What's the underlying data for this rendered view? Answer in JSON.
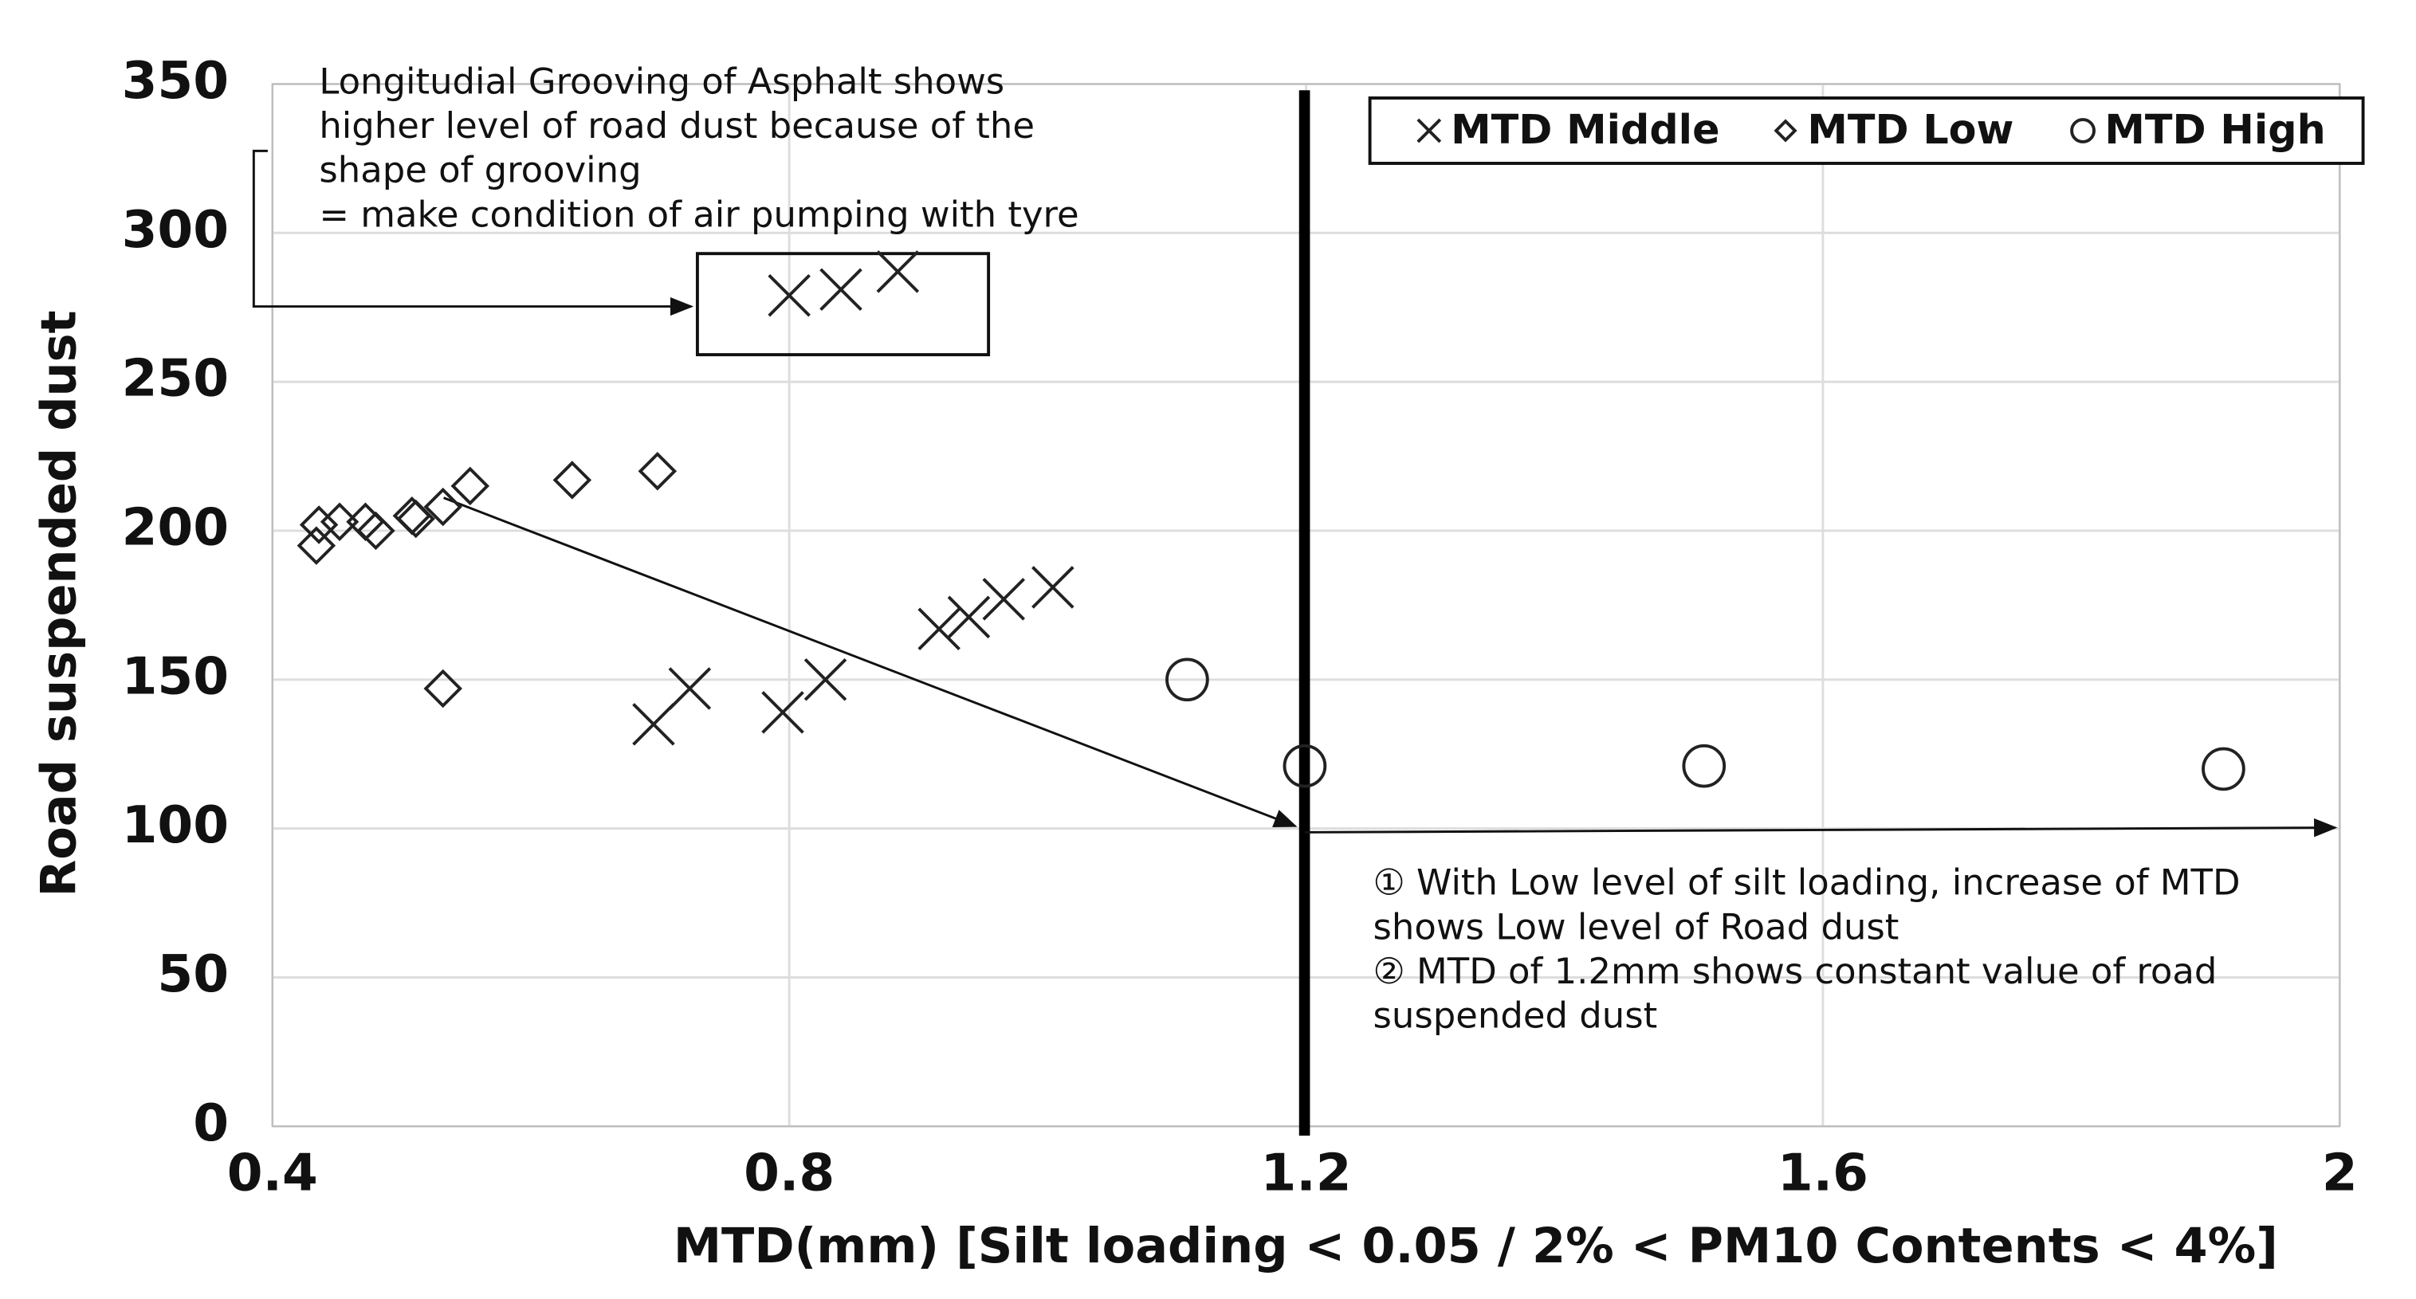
{
  "chart_data": {
    "type": "scatter",
    "x_label": "MTD(mm) [Silt loading < 0.05 / 2% < PM10 Contents < 4%]",
    "y_label": "Road suspended dust",
    "xlim": [
      0.4,
      2
    ],
    "xticks": [
      0.4,
      0.8,
      1.2,
      1.6,
      2
    ],
    "ylim": [
      0,
      350
    ],
    "yticks": [
      0,
      50,
      100,
      150,
      200,
      250,
      300,
      350
    ],
    "grid": true,
    "legend": "top-right",
    "series": [
      {
        "name": "MTD Middle",
        "marker": "x",
        "color": "#222222",
        "x": [
          0.8,
          0.84,
          0.884,
          0.695,
          0.723,
          0.795,
          0.828,
          0.916,
          0.939,
          0.966,
          1.004
        ],
        "values": [
          279,
          281,
          287,
          135,
          147,
          139,
          150,
          167,
          171,
          177,
          181
        ]
      },
      {
        "name": "MTD Low",
        "marker": "diamond",
        "color": "#222222",
        "x": [
          0.434,
          0.436,
          0.452,
          0.472,
          0.48,
          0.508,
          0.511,
          0.532,
          0.553,
          0.632,
          0.698,
          0.532
        ],
        "values": [
          195,
          202,
          203,
          203,
          200,
          205,
          204,
          208,
          215,
          217,
          220,
          147
        ]
      },
      {
        "name": "MTD High",
        "marker": "circle",
        "color": "#222222",
        "x": [
          1.108,
          1.199,
          1.508,
          1.91
        ],
        "values": [
          150,
          121,
          121,
          120
        ]
      }
    ],
    "annotations": [
      {
        "lines": [
          "Longitudial Grooving of Asphalt shows",
          "higher level of road dust because of the",
          "shape of grooving",
          "= make condition of air pumping with tyre"
        ]
      },
      {
        "lines": [
          "① With Low level of silt loading, increase of MTD",
          "shows Low level of Road dust",
          "② MTD of 1.2mm shows constant value of road",
          "suspended dust"
        ]
      }
    ]
  }
}
